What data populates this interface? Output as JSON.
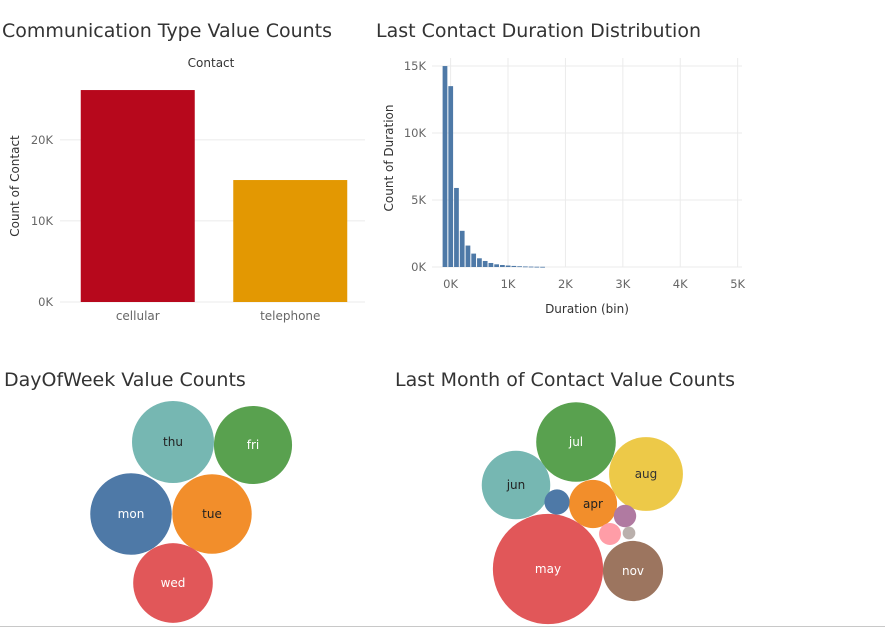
{
  "chart_data": [
    {
      "id": "contact",
      "type": "bar",
      "title": "Communication Type Value Counts",
      "header": "Contact",
      "xlabel": "",
      "ylabel": "Count of Contact",
      "categories": [
        "cellular",
        "telephone"
      ],
      "values": [
        26144,
        15044
      ],
      "colors": [
        "#b7081c",
        "#e39802"
      ],
      "ylim": [
        0,
        28000
      ],
      "yticks": [
        0,
        10000,
        20000
      ],
      "ytick_labels": [
        "0K",
        "10K",
        "20K"
      ],
      "grid": true
    },
    {
      "id": "duration",
      "type": "bar",
      "title": "Last Contact Duration Distribution",
      "xlabel": "Duration (bin)",
      "ylabel": "Count of Duration",
      "bin_width": 100,
      "x": [
        0,
        100,
        200,
        300,
        400,
        500,
        600,
        700,
        800,
        900,
        1000,
        1100,
        1200,
        1300,
        1400,
        1500,
        1600,
        1700
      ],
      "values": [
        15000,
        13500,
        5900,
        2700,
        1600,
        1000,
        650,
        450,
        300,
        200,
        150,
        110,
        80,
        55,
        40,
        30,
        20,
        15
      ],
      "color": "#4e79a7",
      "xlim": [
        -150,
        5250
      ],
      "ylim": [
        0,
        15600
      ],
      "xticks": [
        0,
        1000,
        2000,
        3000,
        4000,
        5000
      ],
      "xtick_labels": [
        "0K",
        "1K",
        "2K",
        "3K",
        "4K",
        "5K"
      ],
      "yticks": [
        0,
        5000,
        10000,
        15000
      ],
      "ytick_labels": [
        "0K",
        "5K",
        "10K",
        "15K"
      ],
      "grid": true
    },
    {
      "id": "dayofweek",
      "type": "bubble",
      "title": "DayOfWeek Value Counts",
      "labels": [
        "thu",
        "fri",
        "mon",
        "tue",
        "wed"
      ],
      "values": [
        8623,
        7827,
        8514,
        8090,
        8134
      ],
      "colors": [
        "#76b7b2",
        "#59a14f",
        "#4e79a7",
        "#f28e2b",
        "#e15759"
      ],
      "label_colors": [
        "#222222",
        "#ffffff",
        "#ffffff",
        "#222222",
        "#ffffff"
      ]
    },
    {
      "id": "month",
      "type": "bubble",
      "title": "Last Month of Contact Value Counts",
      "labels": [
        "jul",
        "aug",
        "jun",
        "apr",
        "may",
        "nov",
        "",
        "",
        "",
        ""
      ],
      "values": [
        7174,
        6178,
        5318,
        2632,
        13769,
        4101,
        718,
        570,
        546,
        182
      ],
      "colors": [
        "#59a14f",
        "#edc948",
        "#76b7b2",
        "#f28e2b",
        "#e15759",
        "#9c755f",
        "#4e79a7",
        "#b07aa1",
        "#ff9da7",
        "#bab0ac"
      ],
      "label_colors": [
        "#ffffff",
        "#333333",
        "#222222",
        "#222222",
        "#ffffff",
        "#ffffff",
        "#ffffff",
        "#ffffff",
        "#ffffff",
        "#ffffff"
      ]
    }
  ]
}
